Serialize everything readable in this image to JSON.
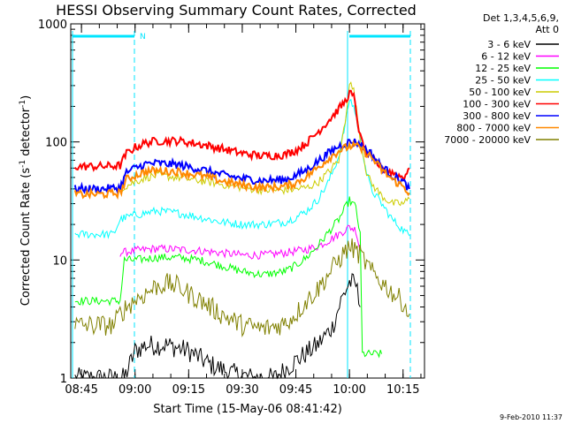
{
  "chart_data": {
    "type": "line",
    "title": "HESSI Observing Summary Count Rates, Corrected",
    "xlabel": "Start Time (15-May-06 08:41:42)",
    "ylabel": "Corrected Count Rate (s",
    "ylabel_sup1": "-1",
    "ylabel_mid": " detector",
    "ylabel_sup2": "-1",
    "ylabel_end": ")",
    "yscale": "log",
    "ylim": [
      1,
      1000
    ],
    "xlim_minutes": [
      8.7,
      10.35
    ],
    "y_ticks": [
      {
        "value": 1,
        "label": "1"
      },
      {
        "value": 10,
        "label": "10"
      },
      {
        "value": 100,
        "label": "100"
      },
      {
        "value": 1000,
        "label": "1000"
      }
    ],
    "x_ticks": [
      {
        "value": 8.75,
        "label": "08:45"
      },
      {
        "value": 9.0,
        "label": "09:00"
      },
      {
        "value": 9.25,
        "label": "09:15"
      },
      {
        "value": 9.5,
        "label": "09:30"
      },
      {
        "value": 9.75,
        "label": "09:45"
      },
      {
        "value": 10.0,
        "label": "10:00"
      },
      {
        "value": 10.25,
        "label": "10:15"
      }
    ],
    "legend": {
      "header_line1": "Det 1,3,4,5,6,9,",
      "header_line2": "Att 0",
      "placement": "right"
    },
    "flag_label": "N",
    "timestamp": "9-Feb-2010 11:37",
    "series": [
      {
        "name": "3 - 6 keV",
        "color": "#000000",
        "x": [
          8.72,
          8.85,
          8.95,
          9.0,
          9.05,
          9.15,
          9.25,
          9.35,
          9.45,
          9.55,
          9.65,
          9.75,
          9.85,
          9.92,
          9.96,
          10.0,
          10.03,
          10.05
        ],
        "y": [
          1.0,
          1.0,
          1.0,
          1.7,
          1.9,
          1.9,
          1.7,
          1.3,
          1.1,
          1.0,
          1.0,
          1.4,
          1.9,
          2.7,
          4.5,
          6.5,
          6.2,
          4.0
        ]
      },
      {
        "name": "6 - 12 keV",
        "color": "#ff00ff",
        "x": [
          8.93,
          9.0,
          9.1,
          9.2,
          9.3,
          9.4,
          9.5,
          9.6,
          9.7,
          9.8,
          9.85,
          9.9,
          9.95,
          10.0,
          10.03,
          10.05
        ],
        "y": [
          11.5,
          12,
          12.5,
          12.3,
          12,
          11.5,
          11,
          11,
          11.5,
          12.3,
          13,
          14.5,
          16.5,
          19,
          18,
          12
        ]
      },
      {
        "name": "12 - 25 keV",
        "color": "#00ff00",
        "x": [
          8.72,
          8.9,
          8.93,
          8.95,
          9.0,
          9.1,
          9.2,
          9.3,
          9.4,
          9.5,
          9.6,
          9.7,
          9.75,
          9.8,
          9.85,
          9.9,
          9.95,
          10.0,
          10.03,
          10.05,
          10.06,
          10.09,
          10.12,
          10.15
        ],
        "y": [
          4.5,
          4.5,
          4.5,
          10,
          10,
          10.5,
          10.5,
          10,
          9,
          8,
          7.5,
          8,
          9,
          10.5,
          13,
          17,
          22,
          32,
          28,
          16,
          1.6,
          1.6,
          1.6,
          1.6
        ]
      },
      {
        "name": "25 - 50 keV",
        "color": "#00ffff",
        "x": [
          8.72,
          8.8,
          8.9,
          8.93,
          8.96,
          9.0,
          9.05,
          9.1,
          9.2,
          9.3,
          9.4,
          9.5,
          9.6,
          9.7,
          9.75,
          9.8,
          9.85,
          9.9,
          9.95,
          9.98,
          10.0,
          10.02,
          10.05,
          10.08,
          10.1,
          10.15,
          10.2,
          10.25,
          10.28
        ],
        "y": [
          16.5,
          16.5,
          16.5,
          22,
          23,
          24,
          25,
          26,
          25,
          23,
          21,
          20,
          20,
          21,
          23,
          26,
          32,
          45,
          75,
          140,
          230,
          200,
          110,
          55,
          40,
          30,
          22,
          18,
          16
        ]
      },
      {
        "name": "50 - 100 keV",
        "color": "#cccc00",
        "x": [
          8.93,
          9.0,
          9.05,
          9.1,
          9.2,
          9.3,
          9.4,
          9.5,
          9.6,
          9.7,
          9.8,
          9.85,
          9.9,
          9.95,
          9.98,
          10.0,
          10.02,
          10.05,
          10.08,
          10.1,
          10.15,
          10.2,
          10.25,
          10.28
        ],
        "y": [
          40,
          46,
          50,
          52,
          50,
          47,
          44,
          41,
          39,
          39,
          41,
          45,
          55,
          70,
          150,
          320,
          270,
          110,
          55,
          45,
          35,
          30,
          30,
          33
        ]
      },
      {
        "name": "100 - 300 keV",
        "color": "#ff0000",
        "x": [
          8.72,
          8.85,
          8.93,
          8.96,
          9.0,
          9.05,
          9.1,
          9.2,
          9.3,
          9.4,
          9.5,
          9.6,
          9.7,
          9.75,
          9.8,
          9.85,
          9.9,
          9.95,
          9.98,
          10.0,
          10.02,
          10.05,
          10.08,
          10.1,
          10.15,
          10.2,
          10.25,
          10.28
        ],
        "y": [
          62,
          62,
          63,
          80,
          90,
          98,
          102,
          102,
          96,
          88,
          80,
          76,
          78,
          85,
          98,
          120,
          150,
          190,
          220,
          260,
          240,
          110,
          80,
          75,
          60,
          55,
          50,
          60
        ]
      },
      {
        "name": "300 - 800 keV",
        "color": "#0000ff",
        "x": [
          8.72,
          8.85,
          8.93,
          8.96,
          9.0,
          9.05,
          9.1,
          9.2,
          9.3,
          9.4,
          9.5,
          9.6,
          9.7,
          9.75,
          9.8,
          9.85,
          9.9,
          9.95,
          10.0,
          10.03,
          10.05,
          10.1,
          10.15,
          10.2,
          10.25,
          10.28
        ],
        "y": [
          40,
          40,
          41,
          55,
          60,
          65,
          66,
          64,
          59,
          53,
          49,
          47,
          48,
          52,
          58,
          68,
          80,
          92,
          100,
          100,
          95,
          80,
          62,
          52,
          46,
          40
        ]
      },
      {
        "name": "800 - 7000 keV",
        "color": "#ff8800",
        "x": [
          8.72,
          8.85,
          8.93,
          8.96,
          9.0,
          9.05,
          9.1,
          9.2,
          9.3,
          9.4,
          9.5,
          9.6,
          9.7,
          9.75,
          9.8,
          9.85,
          9.9,
          9.95,
          10.0,
          10.03,
          10.05,
          10.1,
          10.15,
          10.2,
          10.25,
          10.28
        ],
        "y": [
          36,
          36,
          37,
          48,
          52,
          56,
          57,
          56,
          52,
          47,
          43,
          41,
          42,
          45,
          51,
          60,
          72,
          84,
          92,
          92,
          88,
          75,
          58,
          48,
          42,
          37
        ]
      },
      {
        "name": "7000 - 20000 keV",
        "color": "#808000",
        "x": [
          8.72,
          8.9,
          8.93,
          8.96,
          9.0,
          9.05,
          9.1,
          9.15,
          9.2,
          9.25,
          9.3,
          9.4,
          9.5,
          9.6,
          9.7,
          9.75,
          9.8,
          9.85,
          9.9,
          9.95,
          10.0,
          10.03,
          10.06,
          10.1,
          10.15,
          10.2,
          10.25,
          10.28
        ],
        "y": [
          2.8,
          2.8,
          3.5,
          4,
          4.6,
          5.2,
          6,
          6.3,
          6,
          5.2,
          4.6,
          3.5,
          2.8,
          2.6,
          2.9,
          3.5,
          4.5,
          5.6,
          7.5,
          10,
          13,
          12,
          10.5,
          8,
          6.5,
          5.3,
          4.4,
          3.5
        ]
      }
    ]
  }
}
